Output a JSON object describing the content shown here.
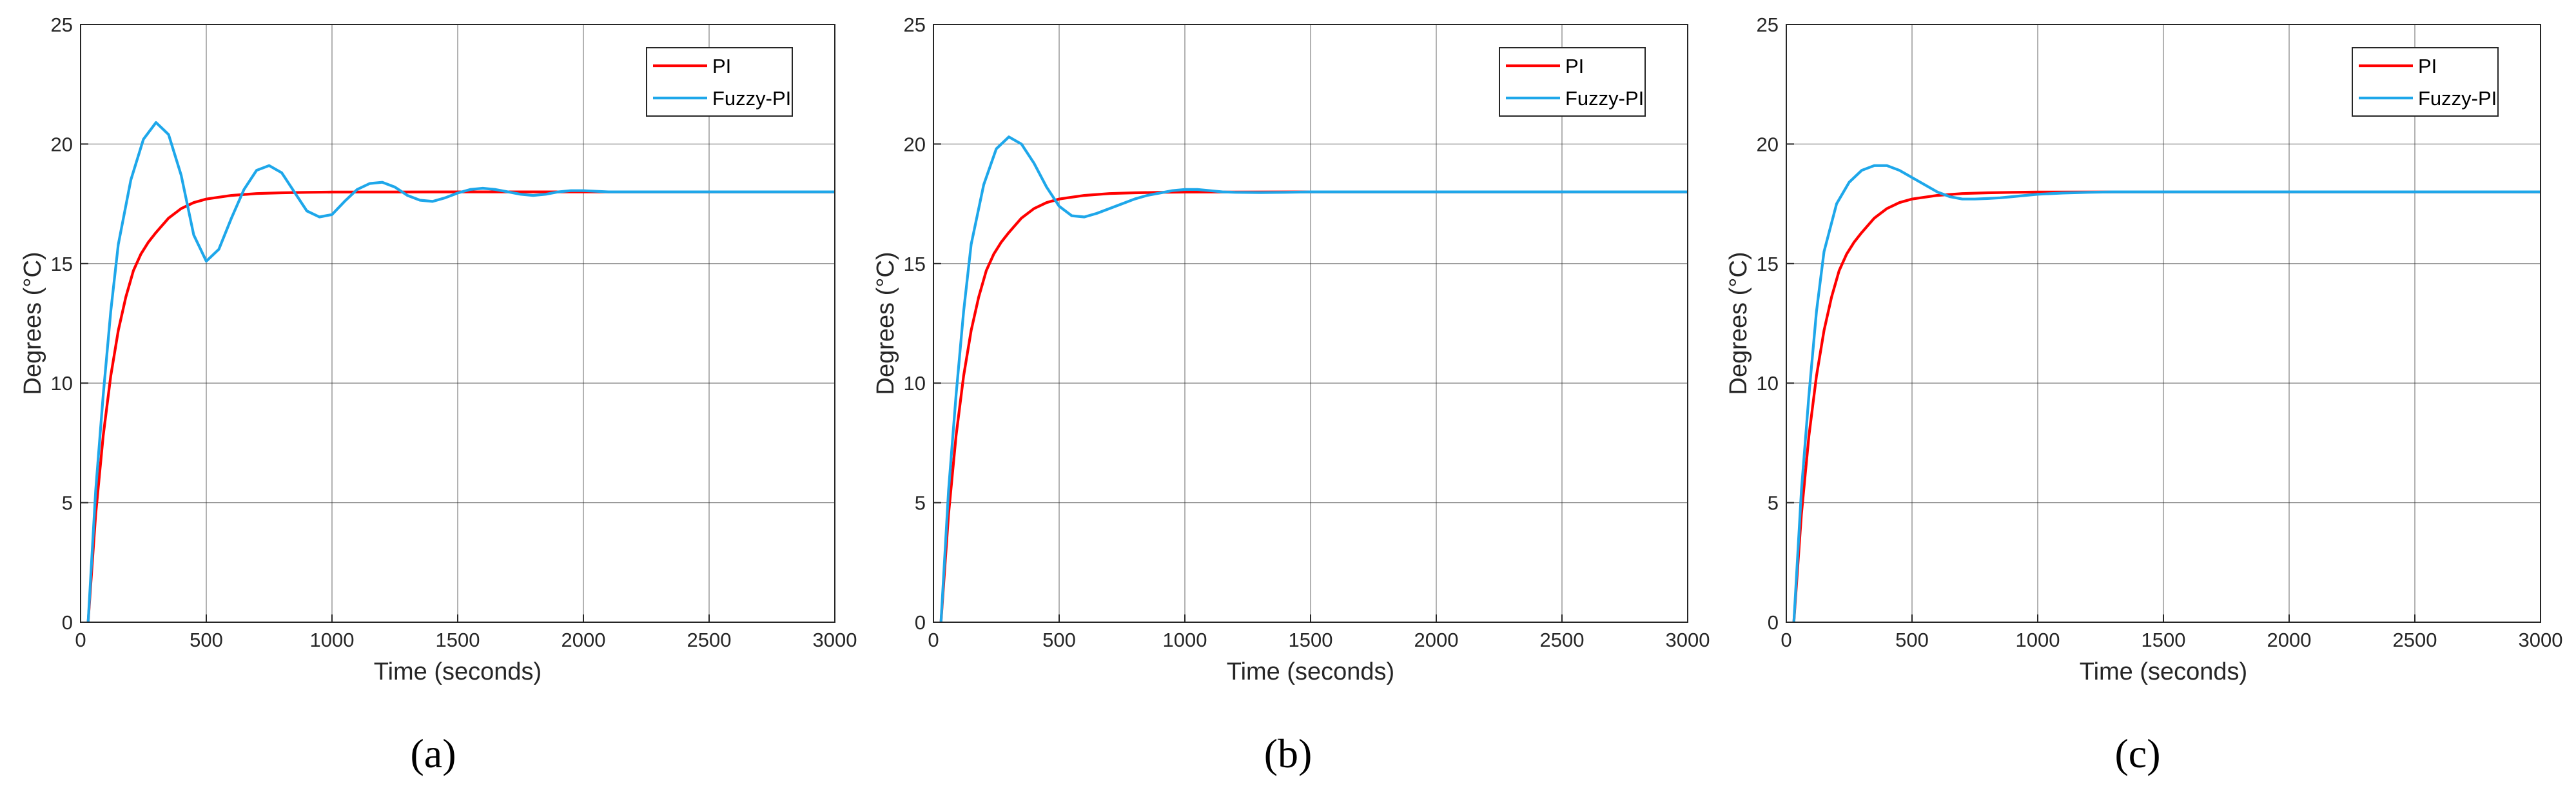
{
  "colors": {
    "pi": "#ff0000",
    "fuzzy": "#1ea7ea",
    "grid": "#262626",
    "axis": "#262626"
  },
  "chart_data": [
    {
      "type": "line",
      "caption": "(a)",
      "xlabel": "Time (seconds)",
      "ylabel": "Degrees (°C)",
      "xlim": [
        0,
        3000
      ],
      "ylim": [
        0,
        25
      ],
      "xticks": [
        0,
        500,
        1000,
        1500,
        2000,
        2500,
        3000
      ],
      "yticks": [
        0,
        5,
        10,
        15,
        20,
        25
      ],
      "grid": true,
      "legend_position": "top-right",
      "series": [
        {
          "name": "PI",
          "color": "#ff0000",
          "x": [
            30,
            60,
            90,
            120,
            150,
            180,
            210,
            240,
            270,
            300,
            350,
            400,
            450,
            500,
            600,
            700,
            800,
            900,
            1000,
            1500,
            2000,
            2500,
            3000
          ],
          "y": [
            0,
            4.5,
            7.8,
            10.3,
            12.2,
            13.6,
            14.7,
            15.4,
            15.9,
            16.3,
            16.9,
            17.3,
            17.55,
            17.7,
            17.85,
            17.93,
            17.96,
            17.98,
            17.99,
            18,
            18,
            18,
            18
          ]
        },
        {
          "name": "Fuzzy-PI",
          "color": "#1ea7ea",
          "x": [
            30,
            60,
            90,
            120,
            150,
            200,
            250,
            300,
            350,
            400,
            450,
            500,
            550,
            600,
            650,
            700,
            750,
            800,
            850,
            900,
            950,
            1000,
            1050,
            1100,
            1150,
            1200,
            1250,
            1300,
            1350,
            1400,
            1450,
            1500,
            1550,
            1600,
            1650,
            1700,
            1750,
            1800,
            1850,
            1900,
            1950,
            2000,
            2100,
            2200,
            2300,
            2500,
            3000
          ],
          "y": [
            0,
            5.5,
            9.5,
            13,
            15.8,
            18.5,
            20.2,
            20.9,
            20.4,
            18.7,
            16.2,
            15.1,
            15.6,
            16.9,
            18.1,
            18.9,
            19.1,
            18.8,
            18.0,
            17.2,
            16.95,
            17.05,
            17.6,
            18.1,
            18.35,
            18.4,
            18.2,
            17.85,
            17.65,
            17.6,
            17.75,
            17.95,
            18.1,
            18.15,
            18.1,
            18.0,
            17.9,
            17.85,
            17.9,
            18.0,
            18.05,
            18.05,
            18.0,
            18.0,
            18.0,
            18.0,
            18.0
          ]
        }
      ]
    },
    {
      "type": "line",
      "caption": "(b)",
      "xlabel": "Time (seconds)",
      "ylabel": "Degrees (°C)",
      "xlim": [
        0,
        3000
      ],
      "ylim": [
        0,
        25
      ],
      "xticks": [
        0,
        500,
        1000,
        1500,
        2000,
        2500,
        3000
      ],
      "yticks": [
        0,
        5,
        10,
        15,
        20,
        25
      ],
      "grid": true,
      "legend_position": "top-right",
      "series": [
        {
          "name": "PI",
          "color": "#ff0000",
          "x": [
            30,
            60,
            90,
            120,
            150,
            180,
            210,
            240,
            270,
            300,
            350,
            400,
            450,
            500,
            600,
            700,
            800,
            900,
            1000,
            1500,
            2000,
            2500,
            3000
          ],
          "y": [
            0,
            4.5,
            7.8,
            10.3,
            12.2,
            13.6,
            14.7,
            15.4,
            15.9,
            16.3,
            16.9,
            17.3,
            17.55,
            17.7,
            17.85,
            17.93,
            17.96,
            17.98,
            17.99,
            18,
            18,
            18,
            18
          ]
        },
        {
          "name": "Fuzzy-PI",
          "color": "#1ea7ea",
          "x": [
            30,
            60,
            90,
            120,
            150,
            200,
            250,
            300,
            350,
            400,
            450,
            500,
            550,
            600,
            650,
            700,
            750,
            800,
            850,
            900,
            950,
            1000,
            1050,
            1100,
            1150,
            1200,
            1300,
            1400,
            1500,
            2000,
            2500,
            3000
          ],
          "y": [
            0,
            5.5,
            9.5,
            13,
            15.8,
            18.3,
            19.8,
            20.3,
            20.0,
            19.2,
            18.2,
            17.4,
            17.0,
            16.95,
            17.1,
            17.3,
            17.5,
            17.7,
            17.85,
            17.95,
            18.05,
            18.1,
            18.1,
            18.05,
            18.0,
            17.98,
            17.97,
            17.98,
            18.0,
            18.0,
            18.0,
            18.0
          ]
        }
      ]
    },
    {
      "type": "line",
      "caption": "(c)",
      "xlabel": "Time (seconds)",
      "ylabel": "Degrees (°C)",
      "xlim": [
        0,
        3000
      ],
      "ylim": [
        0,
        25
      ],
      "xticks": [
        0,
        500,
        1000,
        1500,
        2000,
        2500,
        3000
      ],
      "yticks": [
        0,
        5,
        10,
        15,
        20,
        25
      ],
      "grid": true,
      "legend_position": "top-right",
      "series": [
        {
          "name": "PI",
          "color": "#ff0000",
          "x": [
            30,
            60,
            90,
            120,
            150,
            180,
            210,
            240,
            270,
            300,
            350,
            400,
            450,
            500,
            600,
            700,
            800,
            900,
            1000,
            1500,
            2000,
            2500,
            3000
          ],
          "y": [
            0,
            4.5,
            7.8,
            10.3,
            12.2,
            13.6,
            14.7,
            15.4,
            15.9,
            16.3,
            16.9,
            17.3,
            17.55,
            17.7,
            17.85,
            17.93,
            17.96,
            17.98,
            17.99,
            18,
            18,
            18,
            18
          ]
        },
        {
          "name": "Fuzzy-PI",
          "color": "#1ea7ea",
          "x": [
            30,
            60,
            90,
            120,
            150,
            200,
            250,
            300,
            350,
            400,
            450,
            500,
            550,
            600,
            650,
            700,
            750,
            800,
            850,
            900,
            950,
            1000,
            1100,
            1200,
            1300,
            1500,
            2000,
            2500,
            3000
          ],
          "y": [
            0,
            5.5,
            9.5,
            13,
            15.5,
            17.5,
            18.4,
            18.9,
            19.1,
            19.1,
            18.9,
            18.6,
            18.3,
            18.0,
            17.8,
            17.7,
            17.7,
            17.72,
            17.75,
            17.8,
            17.85,
            17.9,
            17.95,
            17.98,
            18.0,
            18.0,
            18.0,
            18.0,
            18.0
          ]
        }
      ]
    }
  ]
}
